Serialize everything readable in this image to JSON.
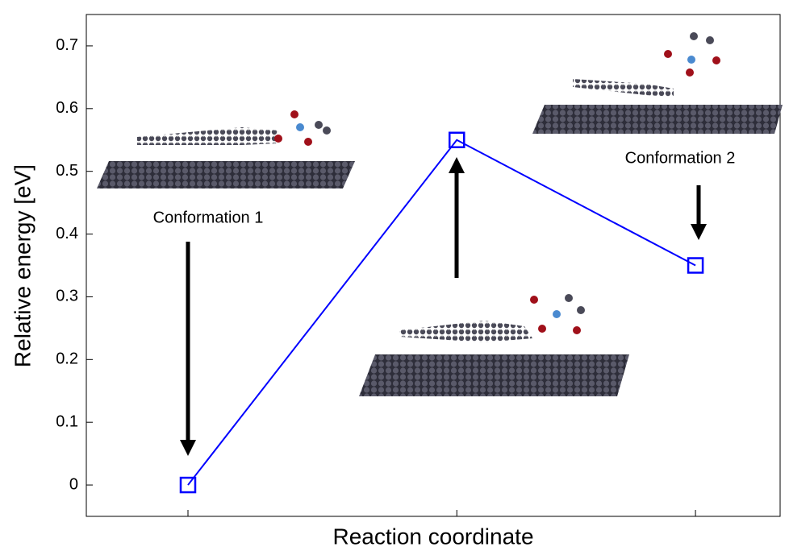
{
  "chart_data": {
    "type": "line",
    "ylabel": "Relative energy [eV]",
    "xlabel": "Reaction coordinate",
    "categories": [
      null,
      null,
      null
    ],
    "values": [
      0,
      0.55,
      0.35
    ],
    "color": "#0000ff",
    "ylim": [
      -0.05,
      0.75
    ],
    "yticks": [
      0,
      0.1,
      0.2,
      0.3,
      0.4,
      0.5,
      0.6,
      0.7
    ],
    "annotations": [
      "Conformation 1",
      "Conformation 2"
    ]
  }
}
